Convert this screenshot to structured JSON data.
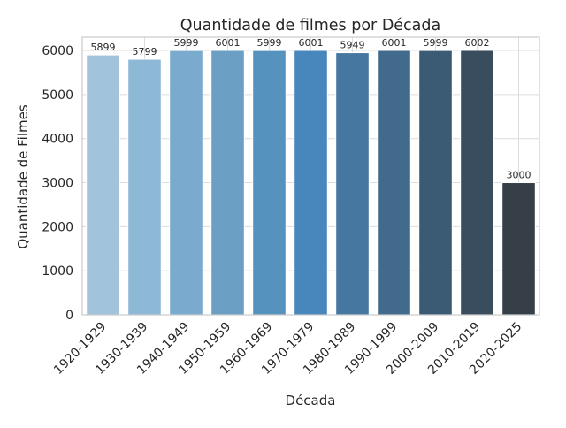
{
  "chart_data": {
    "type": "bar",
    "title": "Quantidade de filmes por Década",
    "xlabel": "Década",
    "ylabel": "Quantidade de Filmes",
    "categories": [
      "1920-1929",
      "1930-1939",
      "1940-1949",
      "1950-1959",
      "1960-1969",
      "1970-1979",
      "1980-1989",
      "1990-1999",
      "2000-2009",
      "2010-2019",
      "2020-2025"
    ],
    "values": [
      5899,
      5799,
      5999,
      6001,
      5999,
      6001,
      5949,
      6001,
      5999,
      6002,
      3000
    ],
    "data_labels": [
      "5899",
      "5799",
      "5999",
      "6001",
      "5999",
      "6001",
      "5949",
      "6001",
      "5999",
      "6002",
      "3000"
    ],
    "yticks": [
      0,
      1000,
      2000,
      3000,
      4000,
      5000,
      6000
    ],
    "ytick_labels": [
      "0",
      "1000",
      "2000",
      "3000",
      "4000",
      "5000",
      "6000"
    ],
    "ylim": [
      0,
      6302
    ],
    "grid": true,
    "colors": [
      "#a1c4dc",
      "#8db8d6",
      "#7aaacd",
      "#6b9fc4",
      "#5592be",
      "#4887bb",
      "#4577a0",
      "#416a8d",
      "#3b5a73",
      "#3a4d5e",
      "#363f48"
    ]
  }
}
